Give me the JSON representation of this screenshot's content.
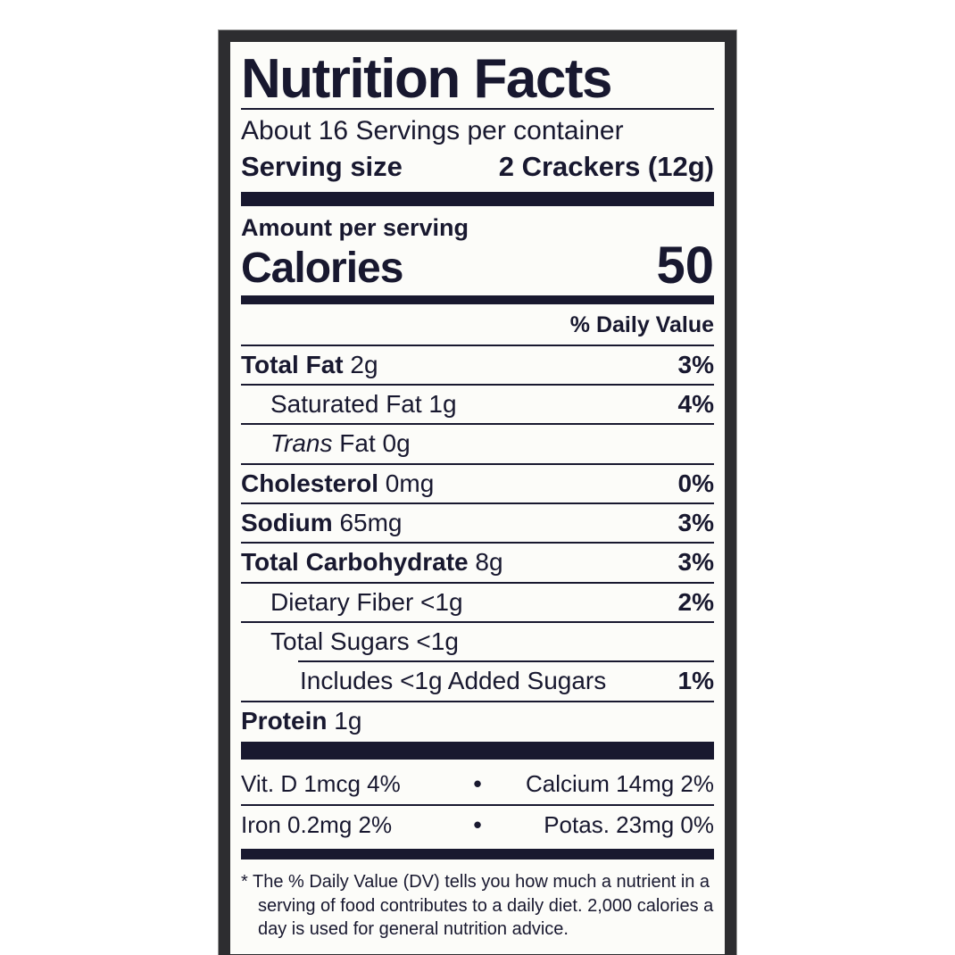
{
  "colors": {
    "text": "#18182f",
    "frame": "#2d2d30",
    "label_background": "#fcfcf9",
    "page_background": "#ffffff"
  },
  "label": {
    "title": "Nutrition Facts",
    "servings_per_container": "About 16 Servings per container",
    "serving_size": {
      "label": "Serving size",
      "value": "2 Crackers (12g)"
    },
    "amount_per_serving": "Amount per serving",
    "calories": {
      "label": "Calories",
      "value": "50"
    },
    "daily_value_header": "% Daily Value",
    "nutrients": [
      {
        "name_bold": "Total Fat",
        "name_regular": " 2g",
        "percent": "3%"
      },
      {
        "name_regular": "Saturated Fat 1g",
        "percent": "4%"
      },
      {
        "name_italic": "Trans",
        "name_regular": " Fat 0g",
        "percent": ""
      },
      {
        "name_bold": "Cholesterol",
        "name_regular": " 0mg",
        "percent": "0%"
      },
      {
        "name_bold": "Sodium",
        "name_regular": " 65mg",
        "percent": "3%"
      },
      {
        "name_bold": "Total Carbohydrate",
        "name_regular": " 8g",
        "percent": "3%"
      },
      {
        "name_regular": "Dietary Fiber <1g",
        "percent": "2%"
      },
      {
        "name_regular": "Total Sugars <1g",
        "percent": ""
      },
      {
        "name_regular": "Includes <1g Added Sugars",
        "percent": "1%"
      },
      {
        "name_bold": "Protein",
        "name_regular": " 1g",
        "percent": ""
      }
    ],
    "micronutrients": {
      "bullet": "•",
      "rows": [
        {
          "left": "Vit. D 1mcg 4%",
          "right": "Calcium 14mg 2%"
        },
        {
          "left": "Iron 0.2mg 2%",
          "right": "Potas. 23mg 0%"
        }
      ]
    },
    "footnote": "* The % Daily Value (DV) tells you how much a nutrient in a serving of food contributes to a daily diet. 2,000 calories a day is used for general nutrition advice."
  }
}
